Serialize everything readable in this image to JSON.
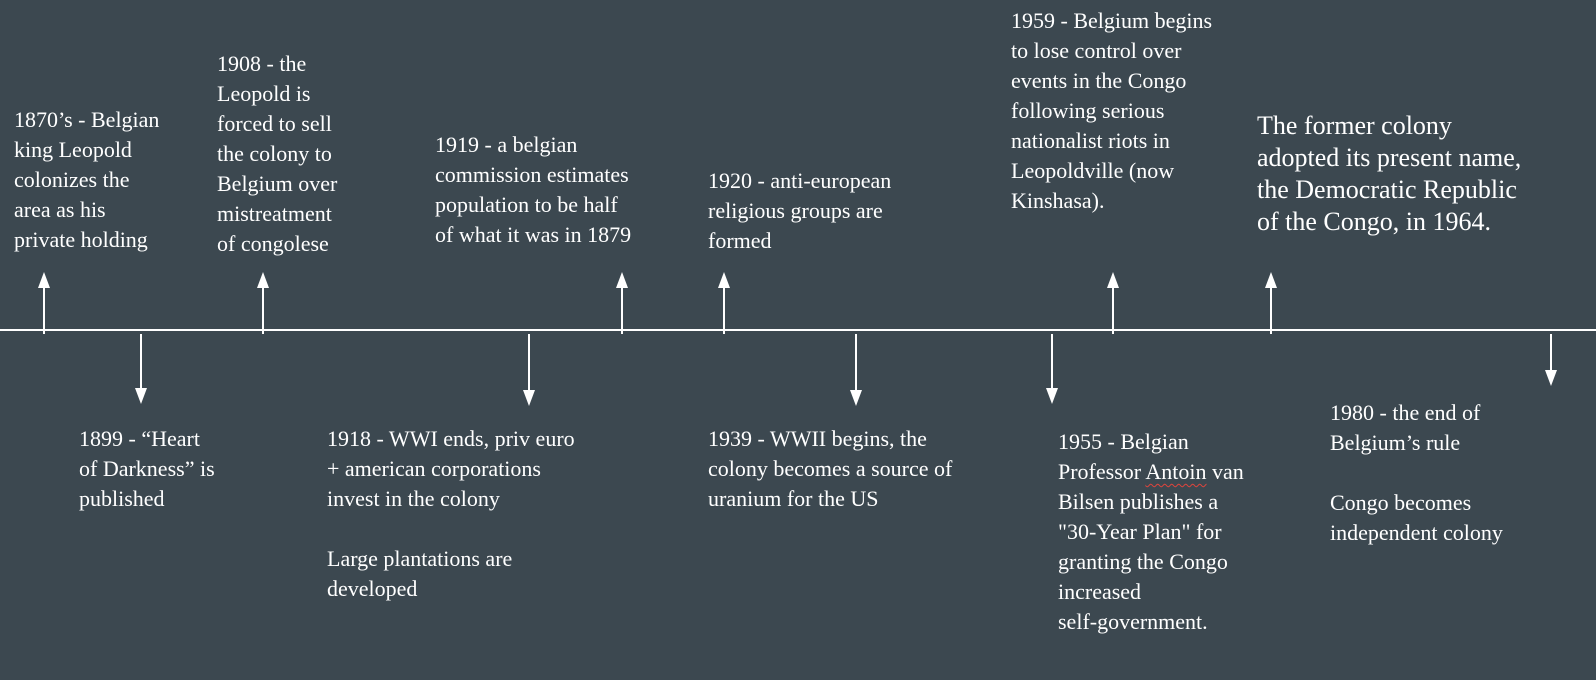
{
  "colors": {
    "background": "#3c4850",
    "line": "#ffffff",
    "text": "#ffffff",
    "spellcheck": "#e0443c"
  },
  "timeline": {
    "events": [
      {
        "id": "1870s",
        "position": "above",
        "text": "1870’s - Belgian\nking Leopold\ncolonizes the\narea as his\nprivate holding"
      },
      {
        "id": "1908",
        "position": "above",
        "text": "1908 - the\nLeopold is\nforced to sell\nthe colony to\nBelgium over\nmistreatment\nof congolese"
      },
      {
        "id": "1919",
        "position": "above",
        "text": "1919 - a belgian\ncommission estimates\npopulation to be half\nof what it was in 1879"
      },
      {
        "id": "1920",
        "position": "above",
        "text": "1920 - anti-european\nreligious groups are\nformed"
      },
      {
        "id": "1959",
        "position": "above",
        "text": "1959 - Belgium begins\nto lose control over\nevents in the Congo\nfollowing serious\nnationalist riots in\nLeopoldville (now\nKinshasa)."
      },
      {
        "id": "1964",
        "position": "above",
        "text": "The former colony\nadopted its present name,\nthe Democratic Republic\nof the Congo, in 1964."
      },
      {
        "id": "1899",
        "position": "below",
        "text": "1899 - “Heart\nof Darkness” is\npublished"
      },
      {
        "id": "1918",
        "position": "below",
        "text": "1918 - WWI ends, priv euro\n+ american corporations\ninvest in the colony\n\nLarge plantations are\ndeveloped"
      },
      {
        "id": "1939",
        "position": "below",
        "text": "1939 - WWII begins, the\ncolony becomes a source of\nuranium for the US"
      },
      {
        "id": "1955",
        "position": "below",
        "text_before": "1955 - Belgian\nProfessor ",
        "misspelled_word": "Antoin",
        "text_after": " van\nBilsen publishes a\n\"30-Year Plan\" for\ngranting the Congo\nincreased\nself-government."
      },
      {
        "id": "1980",
        "position": "below",
        "text": "1980 - the end of\nBelgium’s rule\n\nCongo becomes\nindependent colony"
      }
    ]
  }
}
